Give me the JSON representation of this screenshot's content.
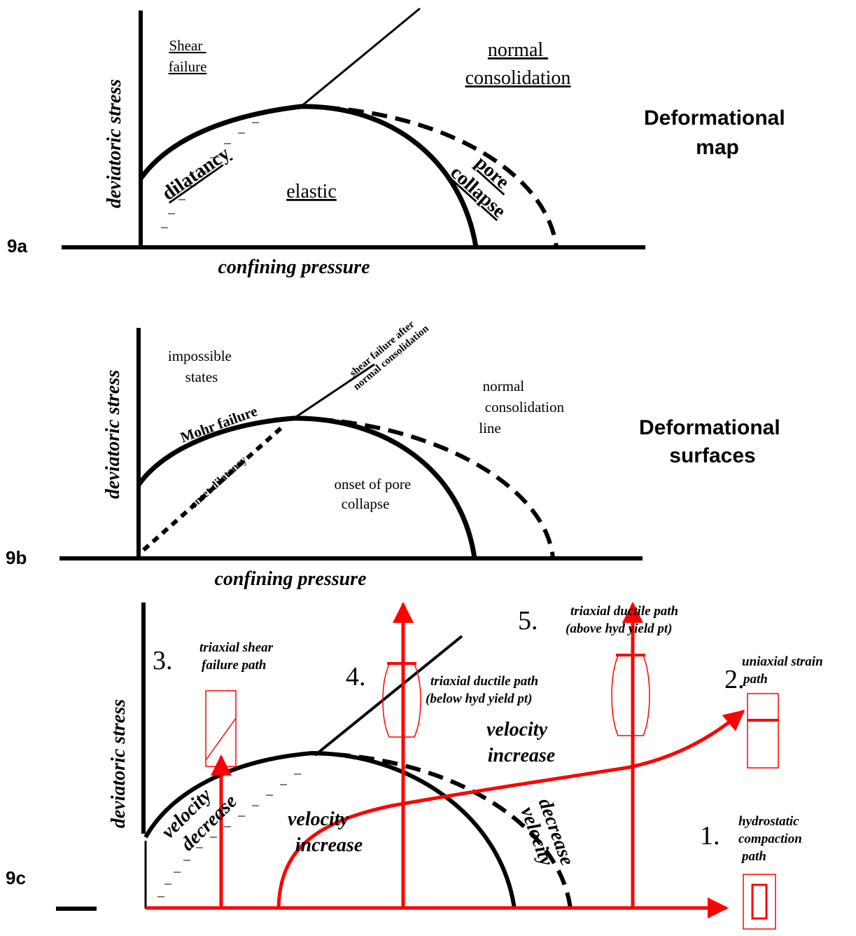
{
  "panels": [
    {
      "label": "9a",
      "title": [
        "Deformational",
        "map"
      ],
      "y_axis": "deviatoric stress",
      "x_axis": "confining pressure",
      "shear_failure": [
        "Shear",
        "failure"
      ],
      "normal_consolidation": [
        "normal",
        "consolidation"
      ],
      "dilatancy": "dilatancy",
      "elastic": "elastic",
      "pore_collapse": [
        "pore",
        "collapse"
      ]
    },
    {
      "label": "9b",
      "title": [
        "Deformational",
        "surfaces"
      ],
      "y_axis": "deviatoric stress",
      "x_axis": "confining pressure",
      "impossible_states": [
        "impossible",
        "states"
      ],
      "mohr_failure": "Mohr failure",
      "shear_after": [
        "shear failure after",
        "normal consolidation"
      ],
      "normal_consolidation_line": [
        "normal",
        "consolidation",
        "line"
      ],
      "onset_dilatancy": "onset dilatancy",
      "onset_pore_collapse": [
        "onset of pore",
        "collapse"
      ]
    },
    {
      "label": "9c",
      "y_axis": "deviatoric stress",
      "paths": [
        {
          "number": "1.",
          "text": [
            "hydrostatic",
            "compaction",
            "path"
          ]
        },
        {
          "number": "2.",
          "text": [
            "uniaxial strain",
            "path"
          ]
        },
        {
          "number": "3.",
          "text": [
            "triaxial shear",
            "failure path"
          ]
        },
        {
          "number": "4.",
          "text": [
            "triaxial ductile path",
            "(below hyd yield pt)"
          ]
        },
        {
          "number": "5.",
          "text": [
            "triaxial ductile path",
            "(above hyd yield pt)"
          ]
        }
      ],
      "velocity_increase": [
        [
          "velocity",
          "increase"
        ],
        [
          "velocity",
          "increase"
        ]
      ],
      "velocity_decrease": [
        [
          "velocity",
          "decrease"
        ],
        [
          "velocity",
          "decrease"
        ]
      ]
    }
  ]
}
